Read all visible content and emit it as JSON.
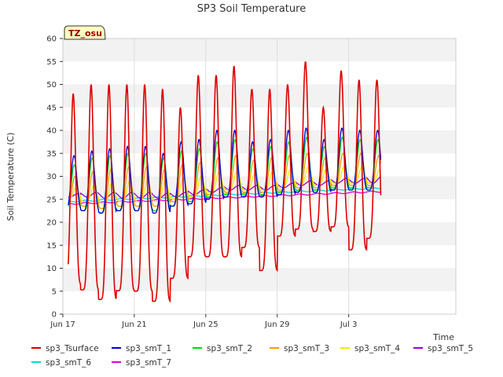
{
  "chart_data": {
    "type": "line",
    "title": "SP3 Soil Temperature",
    "xlabel": "Time",
    "ylabel": "Soil Temperature (C)",
    "xlim": [
      0,
      22
    ],
    "ylim": [
      0,
      60
    ],
    "x_ticks": [
      {
        "value": 0,
        "label": "Jun 17"
      },
      {
        "value": 4,
        "label": "Jun 21"
      },
      {
        "value": 8,
        "label": "Jun 25"
      },
      {
        "value": 12,
        "label": "Jun 29"
      },
      {
        "value": 16,
        "label": "Jul 3"
      }
    ],
    "y_ticks": [
      0,
      5,
      10,
      15,
      20,
      25,
      30,
      35,
      40,
      45,
      50,
      55,
      60
    ],
    "badge": "TZ_osu",
    "x_range_days": [
      0.3,
      17.8
    ],
    "series": [
      {
        "name": "sp3_Tsurface",
        "color": "#dd0000",
        "daily_max": [
          48,
          50,
          50,
          50,
          50,
          49,
          45,
          52,
          52,
          54,
          49,
          49,
          50,
          55,
          45,
          53,
          51,
          51
        ],
        "daily_min": [
          6.5,
          5.3,
          3.2,
          5.1,
          5.0,
          2.8,
          7.8,
          12.5,
          12.5,
          12.5,
          14.5,
          9.5,
          17.0,
          18.5,
          18.0,
          19.0,
          14.0,
          16.5
        ]
      },
      {
        "name": "sp3_smT_1",
        "color": "#0000cc",
        "daily_max": [
          34.5,
          35.5,
          36,
          36.5,
          36.5,
          35,
          37.5,
          38,
          40,
          40,
          37.5,
          38,
          40,
          40.5,
          38,
          40.5,
          40,
          40
        ],
        "daily_min": [
          22.8,
          22.5,
          22,
          22.5,
          22.5,
          22,
          23.5,
          24,
          25,
          25.5,
          25.5,
          25.5,
          26,
          26.5,
          26.5,
          27,
          27,
          27
        ]
      },
      {
        "name": "sp3_smT_2",
        "color": "#00dd00",
        "daily_max": [
          32.5,
          34,
          34.5,
          35,
          35,
          34,
          35.5,
          36,
          37.5,
          38,
          36,
          36.5,
          37.5,
          38.5,
          36.5,
          38.5,
          38,
          38
        ],
        "daily_min": [
          23,
          22.5,
          22,
          22.5,
          22.5,
          22.5,
          23.5,
          24.5,
          25.5,
          26,
          26,
          26,
          26.5,
          27,
          27,
          27.5,
          27.5,
          27.5
        ]
      },
      {
        "name": "sp3_smT_3",
        "color": "#ff9900",
        "daily_max": [
          30,
          31,
          31.5,
          32,
          32,
          31.5,
          32.5,
          33,
          34,
          34.5,
          33.5,
          34,
          34.5,
          35,
          34,
          35,
          35,
          34.5
        ],
        "daily_min": [
          24,
          23.5,
          23,
          23.5,
          23.5,
          23.5,
          24.5,
          25,
          26,
          26.5,
          26.5,
          26.5,
          27,
          27.5,
          27.5,
          28,
          28,
          28
        ]
      },
      {
        "name": "sp3_smT_4",
        "color": "#eeee00",
        "daily_max": [
          27.5,
          28,
          28.5,
          29,
          29,
          29,
          29.5,
          30,
          31,
          31,
          30.5,
          31,
          31.5,
          32,
          31.5,
          32,
          32,
          31.5
        ],
        "daily_min": [
          25,
          24.5,
          24,
          24.5,
          24.5,
          24.5,
          25,
          25.5,
          26.5,
          27,
          27,
          27,
          27.5,
          28,
          28,
          28.5,
          28.5,
          28.5
        ]
      },
      {
        "name": "sp3_smT_5",
        "color": "#9900dd",
        "daily_max": [
          26.2,
          26.5,
          26.5,
          26.5,
          26.5,
          26.3,
          26.5,
          27,
          27.5,
          28,
          28,
          28,
          28.5,
          29,
          29,
          29.5,
          29.5,
          30
        ],
        "daily_min": [
          25.5,
          25.5,
          25.2,
          25.2,
          25.2,
          25.2,
          25.5,
          26,
          26.5,
          27,
          27,
          27,
          27.5,
          28,
          28,
          28.5,
          28.5,
          28.5
        ]
      },
      {
        "name": "sp3_smT_6",
        "color": "#00dddd",
        "start": 24.5,
        "end": 27.5
      },
      {
        "name": "sp3_smT_7",
        "color": "#dd00dd",
        "start": 24.0,
        "end": 26.7
      }
    ]
  }
}
